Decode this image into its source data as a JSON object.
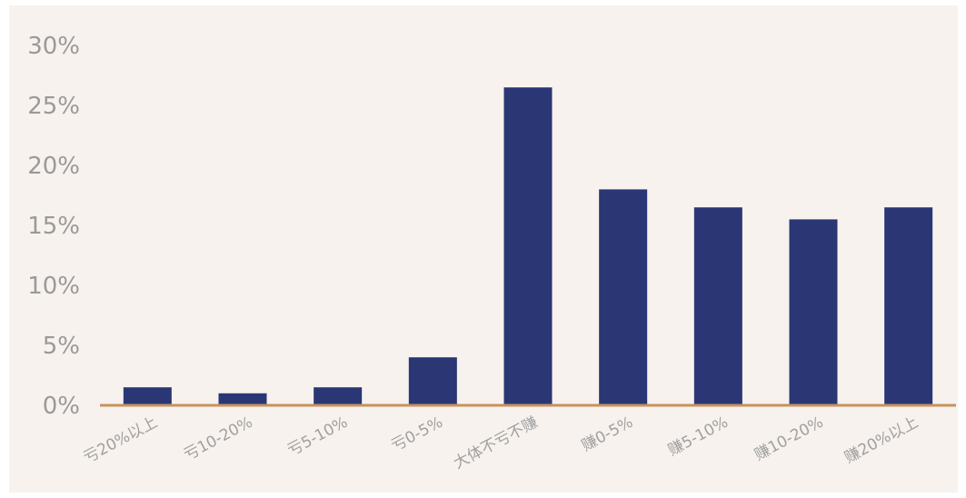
{
  "chart_data": {
    "type": "bar",
    "title": "",
    "xlabel": "",
    "ylabel": "",
    "ylim": [
      0,
      30
    ],
    "yticks": [
      "0%",
      "5%",
      "10%",
      "15%",
      "20%",
      "25%",
      "30%"
    ],
    "ytick_values": [
      0,
      5,
      10,
      15,
      20,
      25,
      30
    ],
    "categories": [
      "亏20%以上",
      "亏10-20%",
      "亏5-10%",
      "亏0-5%",
      "大体不亏不赚",
      "赚0-5%",
      "赚5-10%",
      "赚10-20%",
      "赚20%以上"
    ],
    "values": [
      1.5,
      1.0,
      1.5,
      4.0,
      26.5,
      18.0,
      16.5,
      15.5,
      16.5
    ],
    "bar_color": "#2b3674",
    "axis_color": "#c8915e",
    "background_color": "#f7f2ee",
    "grid": false,
    "legend": "none"
  }
}
